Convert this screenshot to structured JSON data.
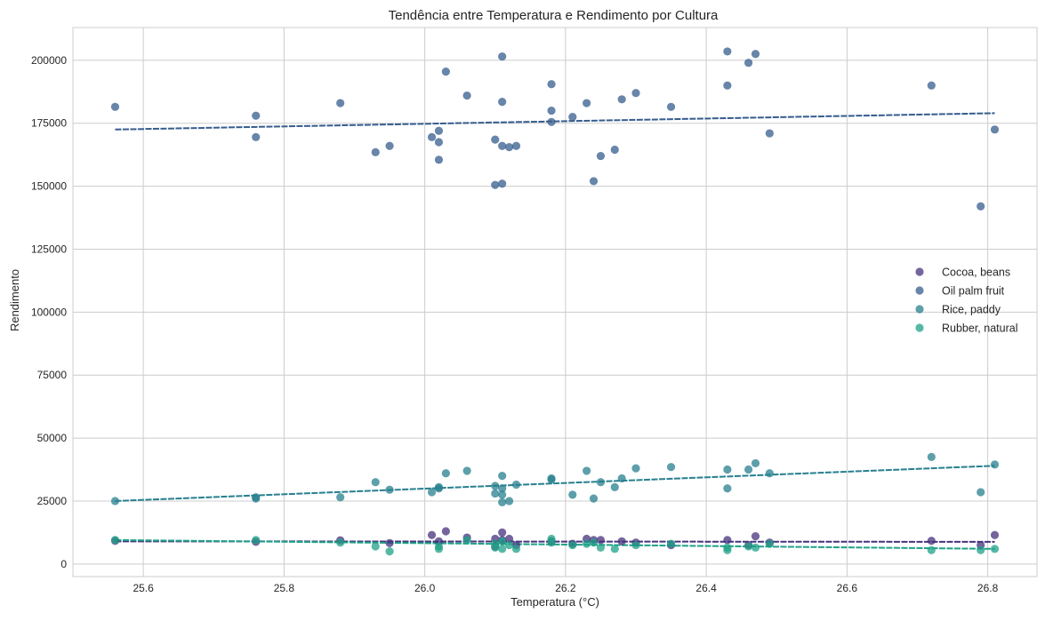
{
  "chart_data": {
    "type": "scatter",
    "title": "Tendência entre Temperatura e Rendimento por Cultura",
    "xlabel": "Temperatura (°C)",
    "ylabel": "Rendimento",
    "xlim": [
      25.5,
      26.87
    ],
    "ylim": [
      -5000,
      213000
    ],
    "xticks": [
      25.6,
      25.8,
      26.0,
      26.2,
      26.4,
      26.6,
      26.8
    ],
    "xtick_labels": [
      "25.6",
      "25.8",
      "26.0",
      "26.2",
      "26.4",
      "26.6",
      "26.8"
    ],
    "yticks": [
      0,
      25000,
      50000,
      75000,
      100000,
      125000,
      150000,
      175000,
      200000
    ],
    "ytick_labels": [
      "0",
      "25000",
      "50000",
      "75000",
      "100000",
      "125000",
      "150000",
      "175000",
      "200000"
    ],
    "grid": true,
    "legend_position": "center-right",
    "series": [
      {
        "name": "Cocoa, beans",
        "color": "#46317e",
        "points": [
          [
            25.56,
            9200
          ],
          [
            25.76,
            8800
          ],
          [
            25.88,
            9400
          ],
          [
            25.95,
            8300
          ],
          [
            26.01,
            11500
          ],
          [
            26.02,
            9000
          ],
          [
            26.03,
            13000
          ],
          [
            26.06,
            10500
          ],
          [
            26.1,
            10000
          ],
          [
            26.1,
            7000
          ],
          [
            26.11,
            12500
          ],
          [
            26.11,
            9500
          ],
          [
            26.12,
            10000
          ],
          [
            26.13,
            7500
          ],
          [
            26.18,
            9000
          ],
          [
            26.21,
            8000
          ],
          [
            26.23,
            10000
          ],
          [
            26.24,
            9500
          ],
          [
            26.25,
            9500
          ],
          [
            26.28,
            9000
          ],
          [
            26.3,
            8500
          ],
          [
            26.35,
            7500
          ],
          [
            26.43,
            9500
          ],
          [
            26.46,
            7500
          ],
          [
            26.47,
            11000
          ],
          [
            26.49,
            8500
          ],
          [
            26.72,
            9200
          ],
          [
            26.79,
            7500
          ],
          [
            26.81,
            11500
          ]
        ],
        "trend": [
          [
            25.56,
            9000
          ],
          [
            26.81,
            8800
          ]
        ]
      },
      {
        "name": "Oil palm fruit",
        "color": "#365c8d",
        "points": [
          [
            25.56,
            181500
          ],
          [
            25.76,
            178000
          ],
          [
            25.76,
            169500
          ],
          [
            25.88,
            183000
          ],
          [
            25.93,
            163500
          ],
          [
            25.95,
            166000
          ],
          [
            26.01,
            169500
          ],
          [
            26.02,
            172000
          ],
          [
            26.02,
            167500
          ],
          [
            26.02,
            160500
          ],
          [
            26.03,
            195500
          ],
          [
            26.06,
            186000
          ],
          [
            26.1,
            168500
          ],
          [
            26.1,
            150500
          ],
          [
            26.11,
            201500
          ],
          [
            26.11,
            183500
          ],
          [
            26.11,
            166000
          ],
          [
            26.11,
            151000
          ],
          [
            26.12,
            165500
          ],
          [
            26.13,
            166000
          ],
          [
            26.18,
            190500
          ],
          [
            26.18,
            180000
          ],
          [
            26.18,
            175500
          ],
          [
            26.21,
            177500
          ],
          [
            26.23,
            183000
          ],
          [
            26.24,
            152000
          ],
          [
            26.25,
            162000
          ],
          [
            26.27,
            164500
          ],
          [
            26.28,
            184500
          ],
          [
            26.3,
            187000
          ],
          [
            26.35,
            181500
          ],
          [
            26.43,
            203500
          ],
          [
            26.43,
            190000
          ],
          [
            26.46,
            199000
          ],
          [
            26.47,
            202500
          ],
          [
            26.49,
            171000
          ],
          [
            26.72,
            190000
          ],
          [
            26.79,
            142000
          ],
          [
            26.81,
            172500
          ]
        ],
        "trend": [
          [
            25.56,
            172500
          ],
          [
            26.81,
            179000
          ]
        ]
      },
      {
        "name": "Rice, paddy",
        "color": "#277f8e",
        "points": [
          [
            25.56,
            25000
          ],
          [
            25.76,
            26500
          ],
          [
            25.76,
            26000
          ],
          [
            25.88,
            26500
          ],
          [
            25.93,
            32500
          ],
          [
            25.95,
            29500
          ],
          [
            26.01,
            28500
          ],
          [
            26.02,
            30000
          ],
          [
            26.02,
            30500
          ],
          [
            26.03,
            36000
          ],
          [
            26.06,
            37000
          ],
          [
            26.1,
            31000
          ],
          [
            26.1,
            28000
          ],
          [
            26.11,
            35000
          ],
          [
            26.11,
            30000
          ],
          [
            26.11,
            27500
          ],
          [
            26.11,
            24500
          ],
          [
            26.12,
            25000
          ],
          [
            26.13,
            31500
          ],
          [
            26.18,
            34000
          ],
          [
            26.18,
            33500
          ],
          [
            26.21,
            27500
          ],
          [
            26.23,
            37000
          ],
          [
            26.24,
            26000
          ],
          [
            26.25,
            32500
          ],
          [
            26.27,
            30500
          ],
          [
            26.28,
            34000
          ],
          [
            26.3,
            38000
          ],
          [
            26.35,
            38500
          ],
          [
            26.43,
            37500
          ],
          [
            26.43,
            30000
          ],
          [
            26.46,
            37500
          ],
          [
            26.47,
            40000
          ],
          [
            26.49,
            36000
          ],
          [
            26.72,
            42500
          ],
          [
            26.79,
            28500
          ],
          [
            26.81,
            39500
          ]
        ],
        "trend": [
          [
            25.56,
            25000
          ],
          [
            26.81,
            39000
          ]
        ]
      },
      {
        "name": "Rubber, natural",
        "color": "#1fa187",
        "points": [
          [
            25.56,
            9500
          ],
          [
            25.76,
            9500
          ],
          [
            25.88,
            8500
          ],
          [
            25.93,
            7000
          ],
          [
            25.95,
            5000
          ],
          [
            26.02,
            7000
          ],
          [
            26.02,
            6000
          ],
          [
            26.06,
            9500
          ],
          [
            26.1,
            6500
          ],
          [
            26.1,
            8000
          ],
          [
            26.11,
            6000
          ],
          [
            26.11,
            9000
          ],
          [
            26.12,
            7500
          ],
          [
            26.13,
            6000
          ],
          [
            26.18,
            8500
          ],
          [
            26.18,
            10000
          ],
          [
            26.21,
            7500
          ],
          [
            26.23,
            8000
          ],
          [
            26.24,
            8500
          ],
          [
            26.25,
            6500
          ],
          [
            26.27,
            6000
          ],
          [
            26.3,
            7500
          ],
          [
            26.35,
            8000
          ],
          [
            26.43,
            5500
          ],
          [
            26.43,
            6500
          ],
          [
            26.46,
            7000
          ],
          [
            26.47,
            6500
          ],
          [
            26.49,
            8000
          ],
          [
            26.72,
            5500
          ],
          [
            26.79,
            5500
          ],
          [
            26.81,
            6000
          ]
        ],
        "trend": [
          [
            25.56,
            9500
          ],
          [
            26.81,
            6000
          ]
        ]
      }
    ]
  }
}
